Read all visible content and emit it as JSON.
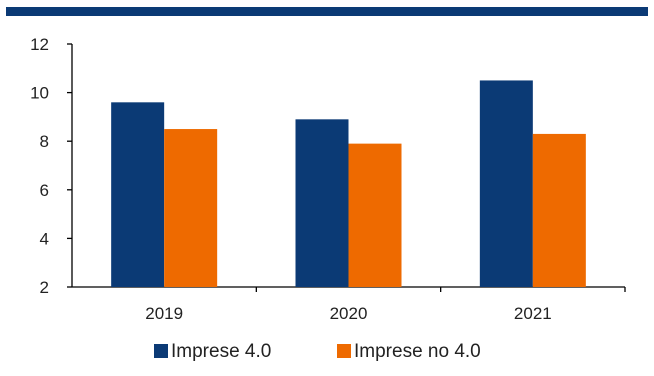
{
  "colors": {
    "header_rule": "#0b3a75",
    "axis": "#000000"
  },
  "chart_data": {
    "type": "bar",
    "title": "",
    "xlabel": "",
    "ylabel": "",
    "categories": [
      "2019",
      "2020",
      "2021"
    ],
    "ylim": [
      2,
      12
    ],
    "yticks": [
      2,
      4,
      6,
      8,
      10,
      12
    ],
    "grid": false,
    "legend_position": "bottom",
    "series": [
      {
        "name": "Imprese 4.0",
        "color": "#0b3a75",
        "values": [
          9.6,
          8.9,
          10.5
        ]
      },
      {
        "name": "Imprese no 4.0",
        "color": "#ee6a00",
        "values": [
          8.5,
          7.9,
          8.3
        ]
      }
    ]
  }
}
